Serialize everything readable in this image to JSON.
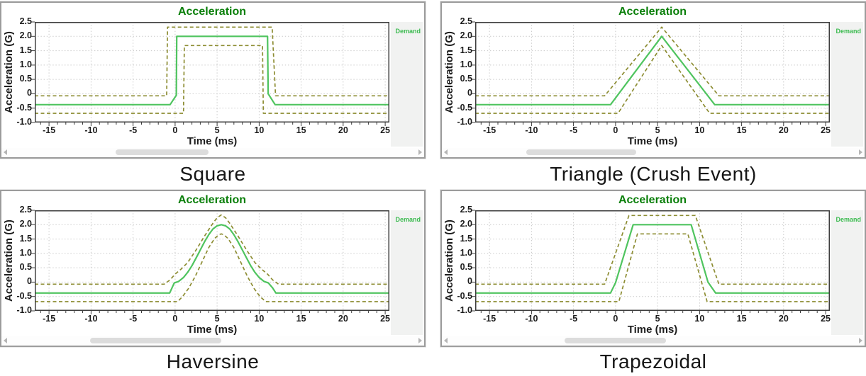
{
  "colors": {
    "title_green": "#0a7f0a",
    "demand_line": "#4fc45f",
    "legend_green": "#3cbb50",
    "tolerance_olive": "#8d8d33",
    "plot_border": "#3c3c3c",
    "panel_border": "#9c9c9c",
    "grid": "#c8c8c8",
    "legend_bg": "#f1f2f1",
    "scroll_thumb": "#dcdcdc",
    "scroll_arrow": "#b5b5b5"
  },
  "chart_data": [
    {
      "type": "line",
      "caption": "Square",
      "title": "Acceleration",
      "xlabel": "Time (ms)",
      "ylabel": "Acceleration (G)",
      "legend": {
        "label": "Demand",
        "position": "right"
      },
      "xlim": [
        -16.7,
        25.5
      ],
      "ylim": [
        -1.0,
        2.5
      ],
      "xticks": [
        -15,
        -10,
        -5,
        0,
        5,
        10,
        15,
        20,
        25
      ],
      "xtick_labels": [
        "-15",
        "-10",
        "-5",
        "0",
        "5",
        "10",
        "15",
        "20",
        "25"
      ],
      "yticks": [
        2.5,
        2.0,
        1.5,
        1.0,
        0.5,
        0,
        -0.5,
        -1.0
      ],
      "ytick_labels": [
        "2.5",
        "2.0",
        "1.5",
        "1.0",
        "0.5",
        "0",
        "-0.5",
        "-1.0"
      ],
      "grid": true,
      "series": [
        {
          "name": "Demand",
          "style": "solid",
          "color_key": "demand_line",
          "points": [
            [
              -16.7,
              -0.38
            ],
            [
              -0.6,
              -0.38
            ],
            [
              0.15,
              -0.05
            ],
            [
              0.2,
              2.0
            ],
            [
              11.0,
              2.0
            ],
            [
              11.08,
              0.0
            ],
            [
              11.9,
              -0.38
            ],
            [
              25.5,
              -0.38
            ]
          ]
        },
        {
          "name": "Upper tolerance",
          "style": "dashed",
          "color_key": "tolerance_olive",
          "points": [
            [
              -16.7,
              -0.07
            ],
            [
              -1.0,
              -0.07
            ],
            [
              -0.9,
              2.32
            ],
            [
              11.55,
              2.32
            ],
            [
              11.95,
              -0.07
            ],
            [
              25.5,
              -0.07
            ]
          ]
        },
        {
          "name": "Lower tolerance",
          "style": "dashed",
          "color_key": "tolerance_olive",
          "points": [
            [
              -16.7,
              -0.68
            ],
            [
              1.0,
              -0.68
            ],
            [
              1.1,
              1.68
            ],
            [
              10.4,
              1.68
            ],
            [
              10.5,
              -0.68
            ],
            [
              25.5,
              -0.68
            ]
          ]
        }
      ],
      "scrollbar": {
        "thumb_left_pct": 27,
        "thumb_width_pct": 22
      }
    },
    {
      "type": "line",
      "caption": "Triangle (Crush Event)",
      "title": "Acceleration",
      "xlabel": "Time (ms)",
      "ylabel": "Acceleration (G)",
      "legend": {
        "label": "Demand",
        "position": "right"
      },
      "xlim": [
        -16.7,
        25.5
      ],
      "ylim": [
        -1.0,
        2.5
      ],
      "xticks": [
        -15,
        -10,
        -5,
        0,
        5,
        10,
        15,
        20,
        25
      ],
      "xtick_labels": [
        "-15",
        "-10",
        "-5",
        "0",
        "5",
        "10",
        "15",
        "20",
        "25"
      ],
      "yticks": [
        2.5,
        2.0,
        1.5,
        1.0,
        0.5,
        0,
        -0.5,
        -1.0
      ],
      "ytick_labels": [
        "2.5",
        "2.0",
        "1.5",
        "1.0",
        "0.5",
        "0",
        "-0.5",
        "-1.0"
      ],
      "grid": true,
      "series": [
        {
          "name": "Demand",
          "style": "solid",
          "color_key": "demand_line",
          "points": [
            [
              -16.7,
              -0.38
            ],
            [
              -0.6,
              -0.38
            ],
            [
              5.5,
              2.0
            ],
            [
              11.8,
              -0.38
            ],
            [
              25.5,
              -0.38
            ]
          ]
        },
        {
          "name": "Upper tolerance",
          "style": "dashed",
          "color_key": "tolerance_olive",
          "points": [
            [
              -16.7,
              -0.07
            ],
            [
              -1.3,
              -0.07
            ],
            [
              5.5,
              2.32
            ],
            [
              12.3,
              -0.07
            ],
            [
              25.5,
              -0.07
            ]
          ]
        },
        {
          "name": "Lower tolerance",
          "style": "dashed",
          "color_key": "tolerance_olive",
          "points": [
            [
              -16.7,
              -0.68
            ],
            [
              0.3,
              -0.68
            ],
            [
              5.5,
              1.68
            ],
            [
              11.2,
              -0.68
            ],
            [
              25.5,
              -0.68
            ]
          ]
        }
      ],
      "scrollbar": {
        "thumb_left_pct": 20,
        "thumb_width_pct": 26
      }
    },
    {
      "type": "line",
      "caption": "Haversine",
      "title": "Acceleration",
      "xlabel": "Time (ms)",
      "ylabel": "Acceleration (G)",
      "legend": {
        "label": "Demand",
        "position": "right"
      },
      "xlim": [
        -16.7,
        25.5
      ],
      "ylim": [
        -1.0,
        2.5
      ],
      "xticks": [
        -15,
        -10,
        -5,
        0,
        5,
        10,
        15,
        20,
        25
      ],
      "xtick_labels": [
        "-15",
        "-10",
        "-5",
        "0",
        "5",
        "10",
        "15",
        "20",
        "25"
      ],
      "yticks": [
        2.5,
        2.0,
        1.5,
        1.0,
        0.5,
        0,
        -0.5,
        -1.0
      ],
      "ytick_labels": [
        "2.5",
        "2.0",
        "1.5",
        "1.0",
        "0.5",
        "0",
        "-0.5",
        "-1.0"
      ],
      "grid": true,
      "series": [
        {
          "name": "Demand",
          "style": "solid",
          "color_key": "demand_line",
          "points": [
            [
              -16.7,
              -0.38
            ],
            [
              -0.65,
              -0.38
            ],
            [
              -0.1,
              -0.03
            ],
            [
              0.4,
              0.02
            ],
            [
              1,
              0.16
            ],
            [
              1.5,
              0.34
            ],
            [
              2,
              0.57
            ],
            [
              2.5,
              0.84
            ],
            [
              3,
              1.12
            ],
            [
              3.5,
              1.4
            ],
            [
              4,
              1.65
            ],
            [
              4.5,
              1.85
            ],
            [
              5,
              1.96
            ],
            [
              5.5,
              2.0
            ],
            [
              6,
              1.96
            ],
            [
              6.5,
              1.85
            ],
            [
              7,
              1.65
            ],
            [
              7.5,
              1.4
            ],
            [
              8,
              1.12
            ],
            [
              8.5,
              0.84
            ],
            [
              9,
              0.57
            ],
            [
              9.5,
              0.34
            ],
            [
              10,
              0.16
            ],
            [
              10.6,
              0.02
            ],
            [
              11.1,
              -0.03
            ],
            [
              11.6,
              -0.2
            ],
            [
              12,
              -0.38
            ],
            [
              25.5,
              -0.38
            ]
          ]
        },
        {
          "name": "Upper tolerance",
          "style": "dashed",
          "color_key": "tolerance_olive",
          "points": [
            [
              -16.7,
              -0.07
            ],
            [
              -1.3,
              -0.07
            ],
            [
              -0.6,
              0.08
            ],
            [
              0,
              0.28
            ],
            [
              0.7,
              0.45
            ],
            [
              1.5,
              0.68
            ],
            [
              2.5,
              1.12
            ],
            [
              3.5,
              1.6
            ],
            [
              4.5,
              2.05
            ],
            [
              5,
              2.24
            ],
            [
              5.5,
              2.34
            ],
            [
              6,
              2.24
            ],
            [
              6.5,
              2.05
            ],
            [
              7.5,
              1.6
            ],
            [
              8.5,
              1.12
            ],
            [
              9.5,
              0.68
            ],
            [
              10.3,
              0.45
            ],
            [
              11,
              0.28
            ],
            [
              11.6,
              0.08
            ],
            [
              12.3,
              -0.07
            ],
            [
              25.5,
              -0.07
            ]
          ]
        },
        {
          "name": "Lower tolerance",
          "style": "dashed",
          "color_key": "tolerance_olive",
          "points": [
            [
              -16.7,
              -0.68
            ],
            [
              0.3,
              -0.68
            ],
            [
              0.9,
              -0.5
            ],
            [
              1.6,
              -0.22
            ],
            [
              2.4,
              0.2
            ],
            [
              3.2,
              0.7
            ],
            [
              4,
              1.2
            ],
            [
              4.7,
              1.52
            ],
            [
              5.2,
              1.65
            ],
            [
              5.5,
              1.68
            ],
            [
              5.8,
              1.65
            ],
            [
              6.3,
              1.52
            ],
            [
              7,
              1.2
            ],
            [
              7.8,
              0.7
            ],
            [
              8.6,
              0.2
            ],
            [
              9.4,
              -0.22
            ],
            [
              10.1,
              -0.5
            ],
            [
              10.8,
              -0.68
            ],
            [
              25.5,
              -0.68
            ]
          ]
        }
      ],
      "scrollbar": {
        "thumb_left_pct": 21,
        "thumb_width_pct": 31
      }
    },
    {
      "type": "line",
      "caption": "Trapezoidal",
      "title": "Acceleration",
      "xlabel": "Time (ms)",
      "ylabel": "Acceleration (G)",
      "legend": {
        "label": "Demand",
        "position": "right"
      },
      "xlim": [
        -16.7,
        25.5
      ],
      "ylim": [
        -1.0,
        2.5
      ],
      "xticks": [
        -15,
        -10,
        -5,
        0,
        5,
        10,
        15,
        20,
        25
      ],
      "xtick_labels": [
        "-15",
        "-10",
        "-5",
        "0",
        "5",
        "10",
        "15",
        "20",
        "25"
      ],
      "yticks": [
        2.5,
        2.0,
        1.5,
        1.0,
        0.5,
        0,
        -0.5,
        -1.0
      ],
      "ytick_labels": [
        "2.5",
        "2.0",
        "1.5",
        "1.0",
        "0.5",
        "0",
        "-0.5",
        "-1.0"
      ],
      "grid": true,
      "series": [
        {
          "name": "Demand",
          "style": "solid",
          "color_key": "demand_line",
          "points": [
            [
              -16.7,
              -0.38
            ],
            [
              -0.6,
              -0.38
            ],
            [
              0,
              -0.02
            ],
            [
              2.1,
              2.0
            ],
            [
              9.0,
              2.0
            ],
            [
              11.0,
              0.0
            ],
            [
              11.9,
              -0.38
            ],
            [
              25.5,
              -0.38
            ]
          ]
        },
        {
          "name": "Upper tolerance",
          "style": "dashed",
          "color_key": "tolerance_olive",
          "points": [
            [
              -16.7,
              -0.07
            ],
            [
              -1.3,
              -0.07
            ],
            [
              1.6,
              2.32
            ],
            [
              9.5,
              2.32
            ],
            [
              12.3,
              -0.07
            ],
            [
              25.5,
              -0.07
            ]
          ]
        },
        {
          "name": "Lower tolerance",
          "style": "dashed",
          "color_key": "tolerance_olive",
          "points": [
            [
              -16.7,
              -0.68
            ],
            [
              0.4,
              -0.68
            ],
            [
              2.6,
              1.68
            ],
            [
              8.6,
              1.68
            ],
            [
              10.9,
              -0.68
            ],
            [
              25.5,
              -0.68
            ]
          ]
        }
      ],
      "scrollbar": {
        "thumb_left_pct": 29,
        "thumb_width_pct": 24
      }
    }
  ]
}
